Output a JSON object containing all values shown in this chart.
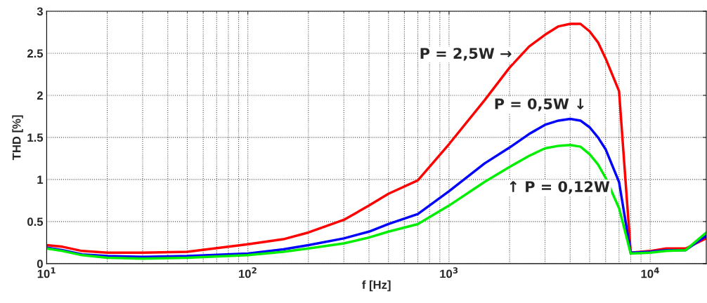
{
  "chart_data": {
    "type": "line",
    "xlabel": "f [Hz]",
    "ylabel": "THD [%]",
    "log": "x",
    "grid": true,
    "line_style": "solid",
    "x": [
      10,
      12,
      15,
      20,
      30,
      50,
      100,
      150,
      200,
      300,
      400,
      500,
      700,
      1000,
      1500,
      2000,
      2500,
      3000,
      3500,
      4000,
      4500,
      5000,
      5500,
      6000,
      7000,
      8000,
      10000,
      12000,
      15000,
      19000
    ],
    "series": [
      {
        "color": "#ff0000",
        "values": [
          0.22,
          0.2,
          0.15,
          0.13,
          0.13,
          0.14,
          0.23,
          0.29,
          0.37,
          0.52,
          0.69,
          0.83,
          0.99,
          1.42,
          1.94,
          2.33,
          2.58,
          2.72,
          2.82,
          2.85,
          2.85,
          2.76,
          2.63,
          2.44,
          2.05,
          0.13,
          0.15,
          0.18,
          0.18,
          0.3
        ]
      },
      {
        "color": "#0000ff",
        "values": [
          0.19,
          0.16,
          0.11,
          0.09,
          0.08,
          0.09,
          0.12,
          0.17,
          0.22,
          0.3,
          0.38,
          0.47,
          0.59,
          0.86,
          1.19,
          1.38,
          1.54,
          1.65,
          1.7,
          1.72,
          1.7,
          1.62,
          1.5,
          1.36,
          0.97,
          0.13,
          0.14,
          0.16,
          0.16,
          0.33
        ]
      },
      {
        "color": "#00ee00",
        "values": [
          0.18,
          0.15,
          0.1,
          0.07,
          0.06,
          0.07,
          0.1,
          0.14,
          0.18,
          0.24,
          0.31,
          0.38,
          0.47,
          0.69,
          0.97,
          1.15,
          1.28,
          1.37,
          1.4,
          1.41,
          1.39,
          1.3,
          1.18,
          1.02,
          0.66,
          0.12,
          0.13,
          0.15,
          0.16,
          0.37
        ]
      }
    ],
    "xlim": [
      10,
      19000
    ],
    "xticks": [
      {
        "value": 10,
        "label": "10$^{1}$"
      },
      {
        "value": 100,
        "label": "10$^{2}$"
      },
      {
        "value": 1000,
        "label": "10$^{3}$"
      },
      {
        "value": 10000,
        "label": "10$^{4}$"
      }
    ],
    "ylim": [
      0,
      3
    ],
    "yticks": [
      0,
      0.5,
      1,
      1.5,
      2,
      2.5,
      3
    ],
    "annotations": [
      "P = 2,5W →",
      "P = 0,5W ↓",
      "↑ P = 0,12W"
    ]
  }
}
